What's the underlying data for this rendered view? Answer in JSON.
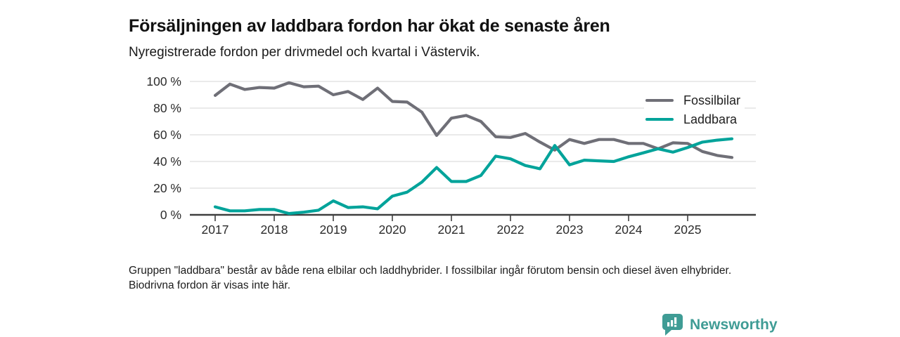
{
  "title": "Försäljningen av laddbara fordon har ökat de senaste åren",
  "subtitle": "Nyregistrerade fordon per drivmedel och kvartal i Västervik.",
  "footnote": "Gruppen \"laddbara\" består av både rena elbilar och laddhybrider. I fossilbilar ingår förutom bensin och diesel även elhybrider. Biodrivna fordon är visas inte här.",
  "legend": {
    "position": "top-right-inside",
    "items": [
      {
        "label": "Fossilbilar",
        "color": "#6f6f77"
      },
      {
        "label": "Laddbara",
        "color": "#00a39a"
      }
    ]
  },
  "logo": {
    "text": "Newsworthy",
    "color": "#3f9c95",
    "icon": "newsworthy-bar-chart-pin-icon"
  },
  "colors": {
    "background": "#ffffff",
    "gridline": "#dedede",
    "axis_line": "#3f3f3f",
    "tick_label": "#2b2b2b",
    "series_fossil": "#6f6f77",
    "series_laddbara": "#00a39a"
  },
  "chart_data": {
    "type": "line",
    "title": "Försäljningen av laddbara fordon har ökat de senaste åren",
    "subtitle": "Nyregistrerade fordon per drivmedel och kvartal i Västervik.",
    "x_unit": "quarter",
    "categories": [
      "2017Q1",
      "2017Q2",
      "2017Q3",
      "2017Q4",
      "2018Q1",
      "2018Q2",
      "2018Q3",
      "2018Q4",
      "2019Q1",
      "2019Q2",
      "2019Q3",
      "2019Q4",
      "2020Q1",
      "2020Q2",
      "2020Q3",
      "2020Q4",
      "2021Q1",
      "2021Q2",
      "2021Q3",
      "2021Q4",
      "2022Q1",
      "2022Q2",
      "2022Q3",
      "2022Q4",
      "2023Q1",
      "2023Q2",
      "2023Q3",
      "2023Q4",
      "2024Q1",
      "2024Q2",
      "2024Q3",
      "2024Q4",
      "2025Q1",
      "2025Q2",
      "2025Q3",
      "2025Q4"
    ],
    "series": [
      {
        "name": "Fossilbilar",
        "color": "#6f6f77",
        "values": [
          89.5,
          98,
          94,
          95.5,
          95,
          99,
          96,
          96.5,
          90,
          92.5,
          86.5,
          95,
          85,
          84.5,
          77,
          59.5,
          72.5,
          74.5,
          70,
          58.5,
          58,
          61,
          54.5,
          48.5,
          56.5,
          53.5,
          56.5,
          56.5,
          53.5,
          53.5,
          49.5,
          54,
          53.5,
          47.5,
          44.5,
          43
        ]
      },
      {
        "name": "Laddbara",
        "color": "#00a39a",
        "values": [
          6,
          3,
          3,
          4,
          4,
          1,
          2,
          3.5,
          10.5,
          5.5,
          6,
          4.5,
          14,
          17,
          24.5,
          35.5,
          25,
          25,
          29.5,
          44,
          42,
          37,
          34.5,
          52,
          37.5,
          41,
          40.5,
          40,
          43.5,
          46.5,
          49.5,
          47,
          50.5,
          54.5,
          56,
          57
        ]
      }
    ],
    "ylim": [
      0,
      100
    ],
    "yticks": [
      0,
      20,
      40,
      60,
      80,
      100
    ],
    "ytick_labels": [
      "0 %",
      "20 %",
      "40 %",
      "60 %",
      "80 %",
      "100 %"
    ],
    "xtick_labels": [
      "2017",
      "2018",
      "2019",
      "2020",
      "2021",
      "2022",
      "2023",
      "2024",
      "2025"
    ],
    "xticks_at_quarter_index": [
      0,
      4,
      8,
      12,
      16,
      20,
      24,
      28,
      32
    ],
    "grid": "horizontal",
    "legend_position": "top-right-inside"
  }
}
